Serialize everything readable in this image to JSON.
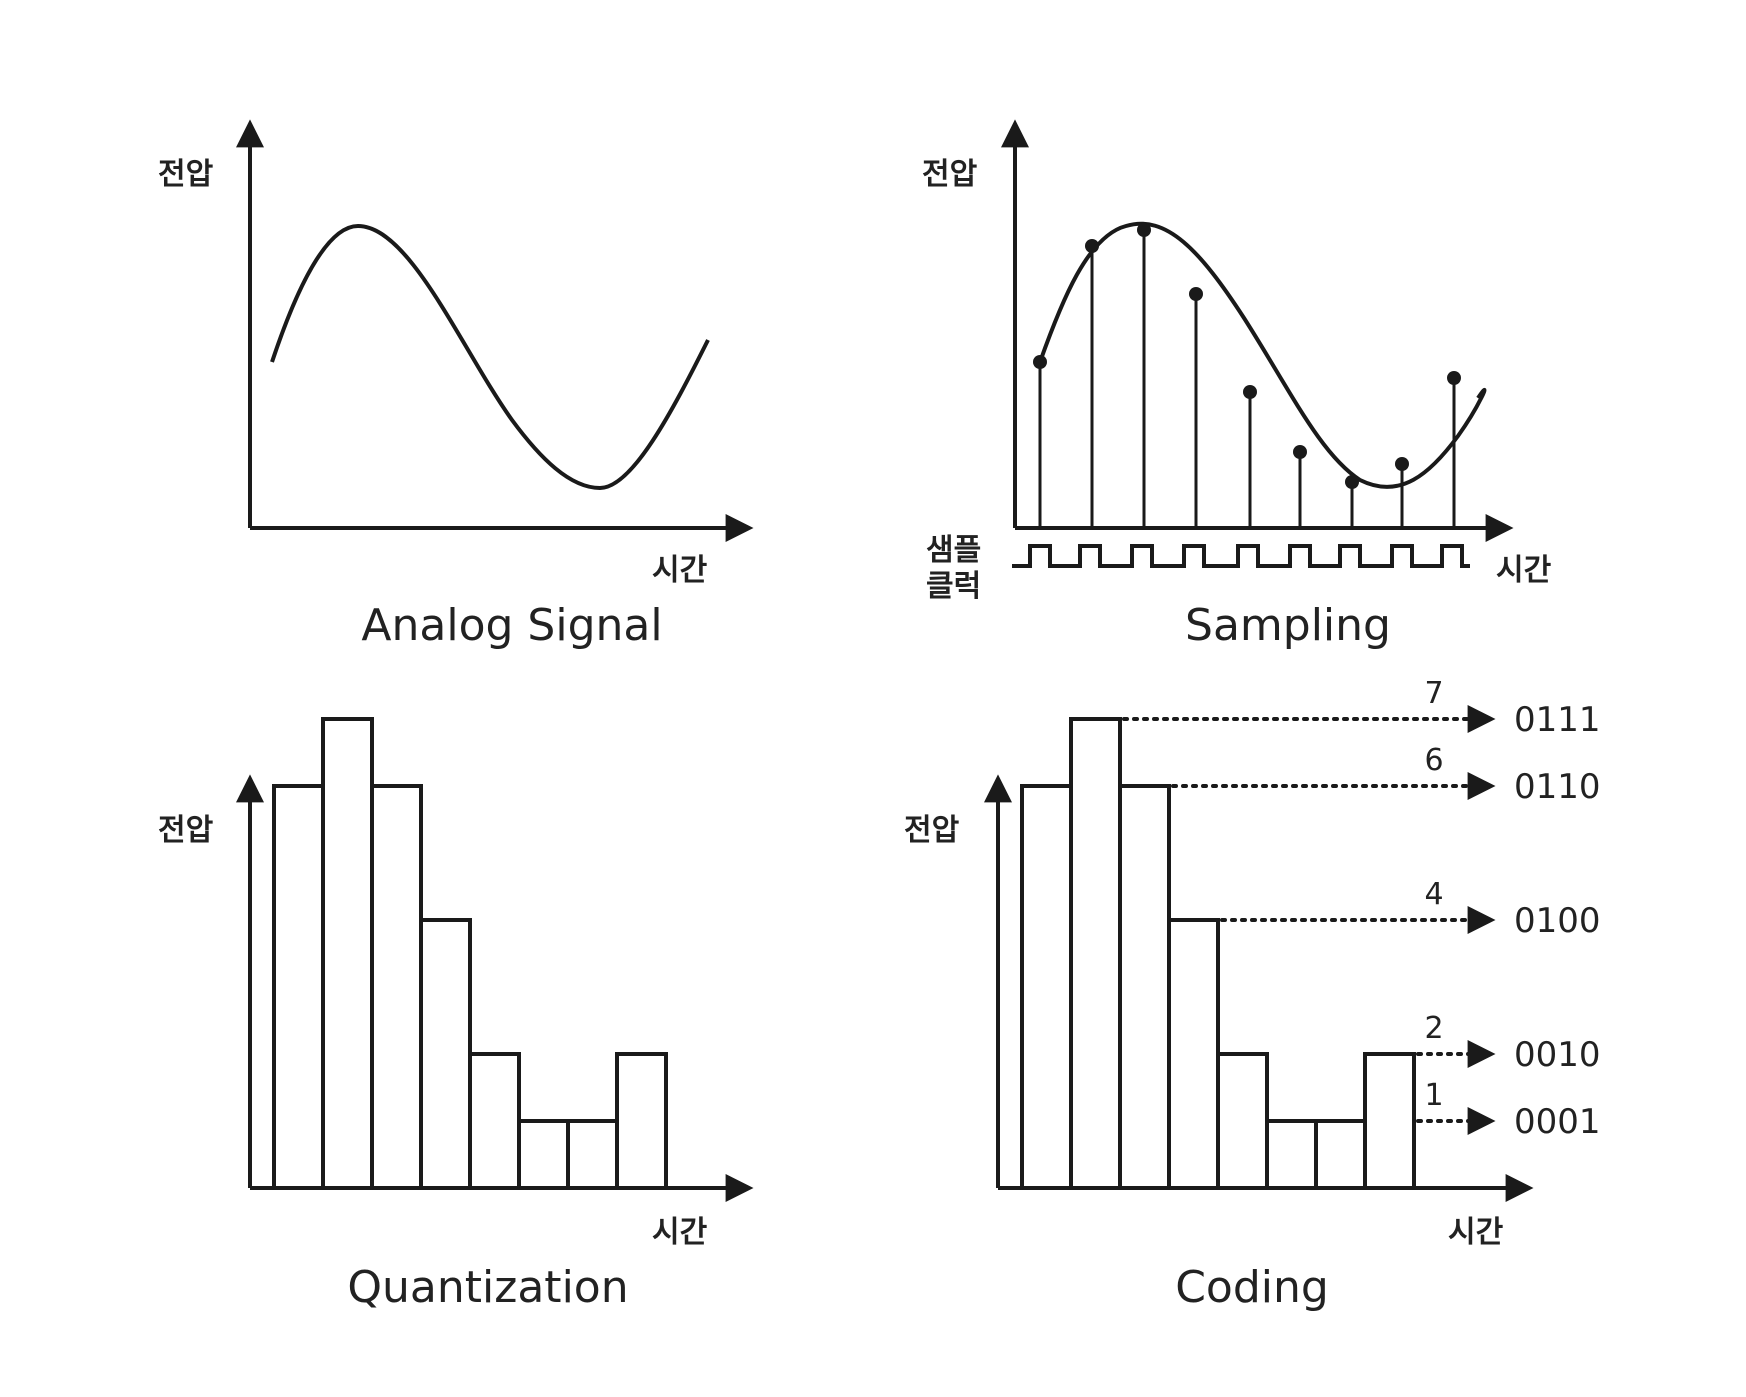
{
  "colors": {
    "ink": "#1a1a1a",
    "background": "#ffffff"
  },
  "panels": {
    "analog": {
      "caption": "Analog Signal",
      "y_axis_label": "전압",
      "x_axis_label": "시간"
    },
    "sampling": {
      "caption": "Sampling",
      "y_axis_label": "전압",
      "x_axis_label": "시간",
      "clock_label_line1": "샘플",
      "clock_label_line2": "클럭",
      "sample_count": 9
    },
    "quantization": {
      "caption": "Quantization",
      "y_axis_label": "전압",
      "x_axis_label": "시간",
      "levels": [
        6,
        7,
        6,
        4,
        2,
        1,
        1,
        2
      ]
    },
    "coding": {
      "caption": "Coding",
      "y_axis_label": "전압",
      "x_axis_label": "시간",
      "levels": [
        6,
        7,
        6,
        4,
        2,
        1,
        1,
        2
      ],
      "codes": [
        {
          "level": "7",
          "code": "0111"
        },
        {
          "level": "6",
          "code": "0110"
        },
        {
          "level": "4",
          "code": "0100"
        },
        {
          "level": "2",
          "code": "0010"
        },
        {
          "level": "1",
          "code": "0001"
        }
      ]
    }
  }
}
